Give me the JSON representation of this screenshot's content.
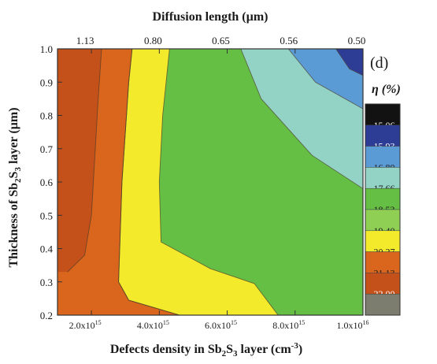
{
  "chart_data": {
    "type": "heatmap",
    "variant": "filled-contour",
    "panel_label": "(d)",
    "colorbar_title": "η (%)",
    "x": {
      "label_parts": [
        "Defects density in Sb",
        "2",
        "S",
        "3",
        " layer (cm",
        "-3",
        ")"
      ],
      "range": [
        1000000000000000.0,
        1e+16
      ],
      "ticks": [
        {
          "value": 2000000000000000.0,
          "mantissa": "2.0x10",
          "exp": "15"
        },
        {
          "value": 4000000000000000.0,
          "mantissa": "4.0x10",
          "exp": "15"
        },
        {
          "value": 6000000000000000.0,
          "mantissa": "6.0x10",
          "exp": "15"
        },
        {
          "value": 8000000000000000.0,
          "mantissa": "8.0x10",
          "exp": "15"
        },
        {
          "value": 1e+16,
          "mantissa": "1.0x10",
          "exp": "16"
        }
      ]
    },
    "x_top": {
      "label": "Diffusion length (µm)",
      "ticks": [
        {
          "at_density": 2000000000000000.0,
          "label": "1.13"
        },
        {
          "at_density": 4000000000000000.0,
          "label": "0.80"
        },
        {
          "at_density": 6000000000000000.0,
          "label": "0.65"
        },
        {
          "at_density": 8000000000000000.0,
          "label": "0.56"
        },
        {
          "at_density": 1e+16,
          "label": "0.50"
        }
      ]
    },
    "y": {
      "label_parts": [
        "Thickness of Sb",
        "2",
        "S",
        "3",
        " layer (µm)"
      ],
      "range": [
        0.2,
        1.0
      ],
      "ticks": [
        "0.2",
        "0.3",
        "0.4",
        "0.5",
        "0.6",
        "0.7",
        "0.8",
        "0.9",
        "1.0"
      ]
    },
    "levels": [
      {
        "label": "15.06",
        "color": "#121212"
      },
      {
        "label": "15.93",
        "color": "#2d3d96"
      },
      {
        "label": "16.80",
        "color": "#5b9bd5"
      },
      {
        "label": "17.66",
        "color": "#93d3c5"
      },
      {
        "label": "18.53",
        "color": "#66bf45"
      },
      {
        "label": "19.40",
        "color": "#8fd054"
      },
      {
        "label": "20.27",
        "color": "#f4ea2c"
      },
      {
        "label": "21.13",
        "color": "#d9661c"
      },
      {
        "label": "22.00",
        "color": "#c4501a"
      },
      {
        "label": "",
        "color": "#7d7d6f"
      }
    ],
    "regions": [
      {
        "level_color": "#d9661c",
        "points": [
          [
            1000000000000000.0,
            0.2
          ],
          [
            1000000000000000.0,
            1.0
          ],
          [
            3200000000000000.0,
            1.0
          ],
          [
            3100000000000000.0,
            0.9
          ],
          [
            2900000000000000.0,
            0.6
          ],
          [
            2800000000000000.0,
            0.3
          ],
          [
            3100000000000000.0,
            0.245
          ],
          [
            4600000000000000.0,
            0.2
          ]
        ]
      },
      {
        "level_color": "#c4501a",
        "points": [
          [
            1000000000000000.0,
            0.33
          ],
          [
            1000000000000000.0,
            1.0
          ],
          [
            2300000000000000.0,
            1.0
          ],
          [
            2200000000000000.0,
            0.85
          ],
          [
            2000000000000000.0,
            0.5
          ],
          [
            1800000000000000.0,
            0.38
          ],
          [
            1300000000000000.0,
            0.33
          ]
        ]
      },
      {
        "level_color": "#f4ea2c",
        "points": [
          [
            4600000000000000.0,
            0.2
          ],
          [
            3100000000000000.0,
            0.245
          ],
          [
            2800000000000000.0,
            0.3
          ],
          [
            2900000000000000.0,
            0.6
          ],
          [
            3100000000000000.0,
            0.9
          ],
          [
            3200000000000000.0,
            1.0
          ],
          [
            4300000000000000.0,
            1.0
          ],
          [
            4100000000000000.0,
            0.8
          ],
          [
            4000000000000000.0,
            0.6
          ],
          [
            4050000000000000.0,
            0.42
          ],
          [
            5500000000000000.0,
            0.34
          ],
          [
            6800000000000000.0,
            0.295
          ],
          [
            7500000000000000.0,
            0.2
          ]
        ]
      },
      {
        "level_color": "#93d3c5",
        "points": [
          [
            6400000000000000.0,
            1.0
          ],
          [
            7000000000000000.0,
            0.85
          ],
          [
            8500000000000000.0,
            0.68
          ],
          [
            1e+16,
            0.58
          ],
          [
            1e+16,
            1.0
          ]
        ]
      },
      {
        "level_color": "#5b9bd5",
        "points": [
          [
            7800000000000000.0,
            1.0
          ],
          [
            8600000000000000.0,
            0.9
          ],
          [
            1e+16,
            0.82
          ],
          [
            1e+16,
            1.0
          ]
        ]
      },
      {
        "level_color": "#2d3d96",
        "points": [
          [
            9200000000000000.0,
            1.0
          ],
          [
            9600000000000000.0,
            0.94
          ],
          [
            1e+16,
            0.92
          ],
          [
            1e+16,
            1.0
          ]
        ]
      }
    ]
  }
}
